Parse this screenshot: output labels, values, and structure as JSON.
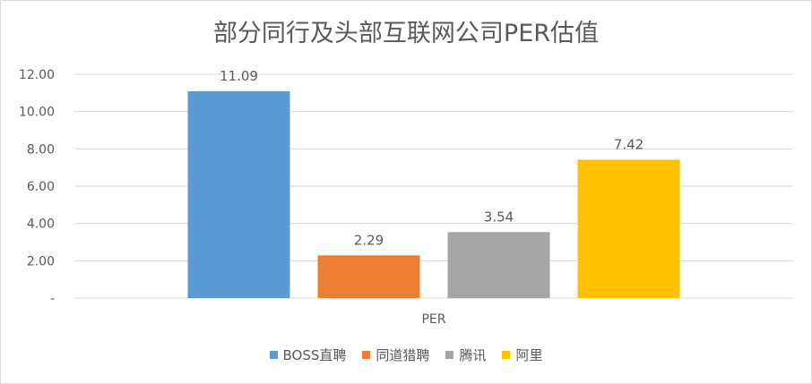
{
  "chart_data": {
    "type": "bar",
    "title": "部分同行及头部互联网公司PER估值",
    "categories": [
      "PER"
    ],
    "series": [
      {
        "name": "BOSS直聘",
        "values": [
          11.09
        ],
        "label": "11.09",
        "color": "#5b9bd5"
      },
      {
        "name": "同道猎聘",
        "values": [
          2.29
        ],
        "label": "2.29",
        "color": "#ed7d31"
      },
      {
        "name": "腾讯",
        "values": [
          3.54
        ],
        "label": "3.54",
        "color": "#a5a5a5"
      },
      {
        "name": "阿里",
        "values": [
          7.42
        ],
        "label": "7.42",
        "color": "#ffc000"
      }
    ],
    "ylim": [
      0,
      12
    ],
    "yticks": [
      {
        "value": 0,
        "label": "-"
      },
      {
        "value": 2,
        "label": "2.00"
      },
      {
        "value": 4,
        "label": "4.00"
      },
      {
        "value": 6,
        "label": "6.00"
      },
      {
        "value": 8,
        "label": "8.00"
      },
      {
        "value": 10,
        "label": "10.00"
      },
      {
        "value": 12,
        "label": "12.00"
      }
    ],
    "grid": true,
    "legend": "bottom",
    "colors": {
      "grid": "#d9d9d9",
      "text": "#595959"
    }
  }
}
